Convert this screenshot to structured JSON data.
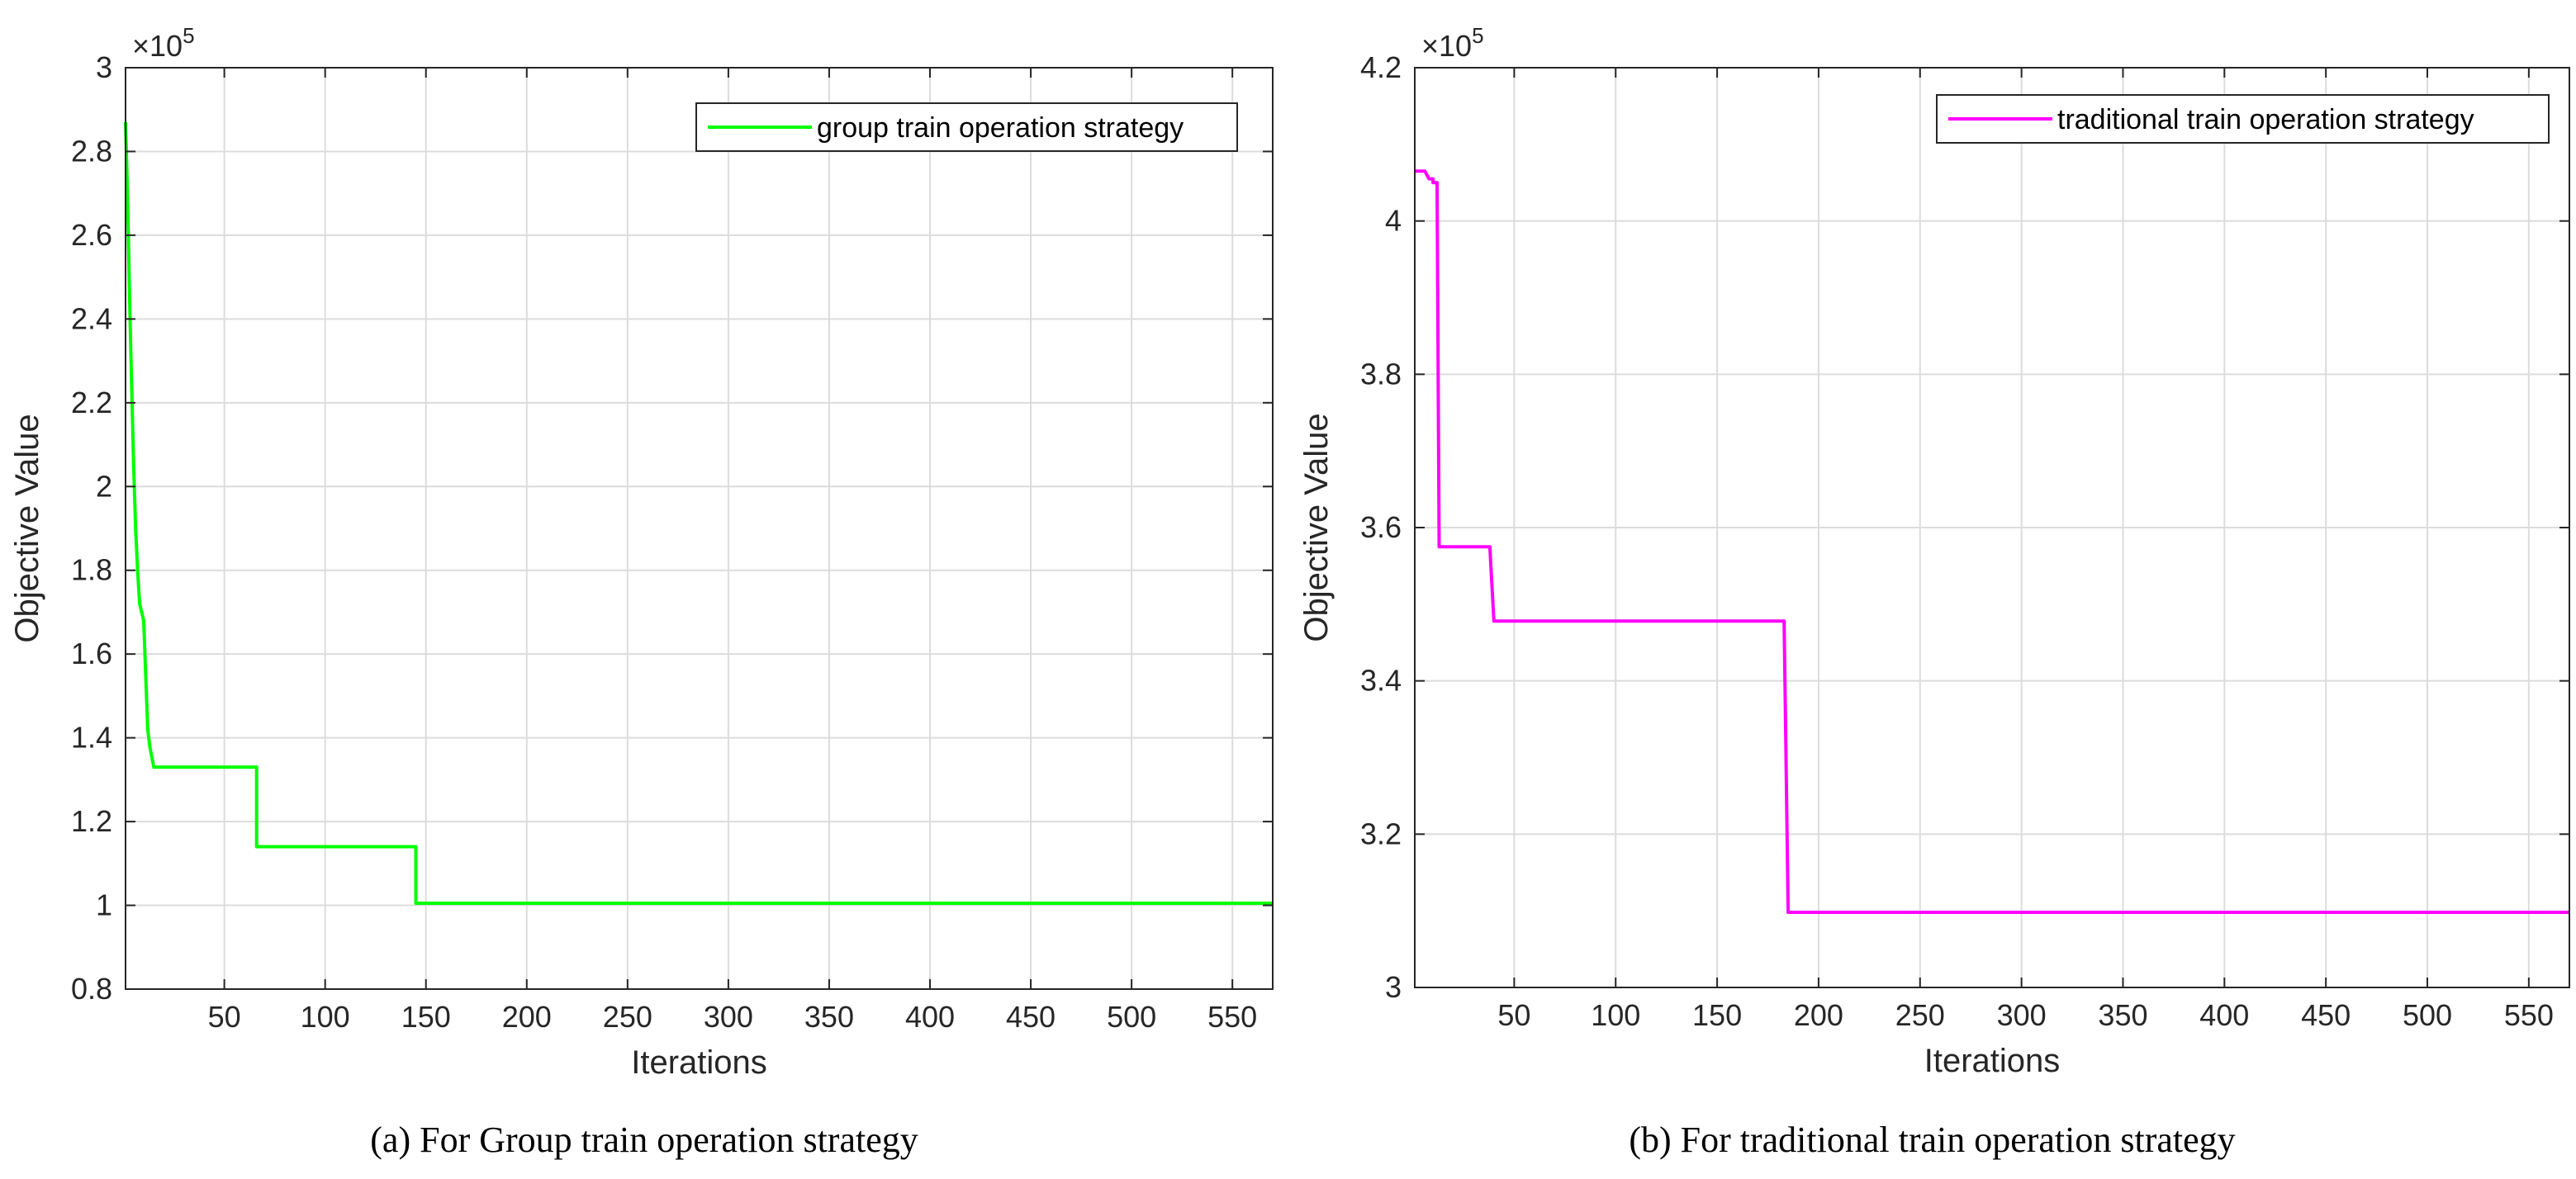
{
  "chart_data": [
    {
      "type": "line",
      "caption": "(a)  For Group train operation strategy",
      "xlabel": "Iterations",
      "ylabel": "Objective Value",
      "exponent_base": "×10",
      "exponent_power": "5",
      "xlim": [
        1,
        570
      ],
      "ylim": [
        0.8,
        3.0
      ],
      "xticks": [
        50,
        100,
        150,
        200,
        250,
        300,
        350,
        400,
        450,
        500,
        550
      ],
      "yticks": [
        0.8,
        1.0,
        1.2,
        1.4,
        1.6,
        1.8,
        2.0,
        2.2,
        2.4,
        2.6,
        2.8,
        3.0
      ],
      "ytick_labels": [
        "0.8",
        "1",
        "1.2",
        "1.4",
        "1.6",
        "1.8",
        "2",
        "2.2",
        "2.4",
        "2.6",
        "2.8",
        "3"
      ],
      "grid": true,
      "legend_position": "top-right",
      "series": [
        {
          "name": "group train operation strategy",
          "color": "#00ff00",
          "points": [
            [
              1,
              2.87
            ],
            [
              2,
              2.7
            ],
            [
              3,
              2.45
            ],
            [
              4,
              2.25
            ],
            [
              5,
              2.05
            ],
            [
              6,
              1.9
            ],
            [
              7,
              1.8
            ],
            [
              8,
              1.72
            ],
            [
              9,
              1.7
            ],
            [
              10,
              1.68
            ],
            [
              11,
              1.55
            ],
            [
              12,
              1.42
            ],
            [
              13,
              1.38
            ],
            [
              15,
              1.33
            ],
            [
              66,
              1.33
            ],
            [
              66,
              1.14
            ],
            [
              145,
              1.14
            ],
            [
              145,
              1.005
            ],
            [
              570,
              1.005
            ]
          ]
        }
      ]
    },
    {
      "type": "line",
      "caption": "(b) For traditional train operation strategy",
      "xlabel": "Iterations",
      "ylabel": "Objective Value",
      "exponent_base": "×10",
      "exponent_power": "5",
      "xlim": [
        1,
        570
      ],
      "ylim": [
        3.0,
        4.2
      ],
      "xticks": [
        50,
        100,
        150,
        200,
        250,
        300,
        350,
        400,
        450,
        500,
        550
      ],
      "yticks": [
        3.0,
        3.2,
        3.4,
        3.6,
        3.8,
        4.0,
        4.2
      ],
      "ytick_labels": [
        "3",
        "3.2",
        "3.4",
        "3.6",
        "3.8",
        "4",
        "4.2"
      ],
      "grid": true,
      "legend_position": "top-right",
      "series": [
        {
          "name": "traditional train operation strategy",
          "color": "#ff00ff",
          "points": [
            [
              1,
              4.065
            ],
            [
              6,
              4.065
            ],
            [
              8,
              4.055
            ],
            [
              10,
              4.055
            ],
            [
              10,
              4.05
            ],
            [
              12,
              4.05
            ],
            [
              13,
              3.575
            ],
            [
              38,
              3.575
            ],
            [
              40,
              3.478
            ],
            [
              183,
              3.478
            ],
            [
              185,
              3.098
            ],
            [
              570,
              3.098
            ]
          ]
        }
      ]
    }
  ]
}
